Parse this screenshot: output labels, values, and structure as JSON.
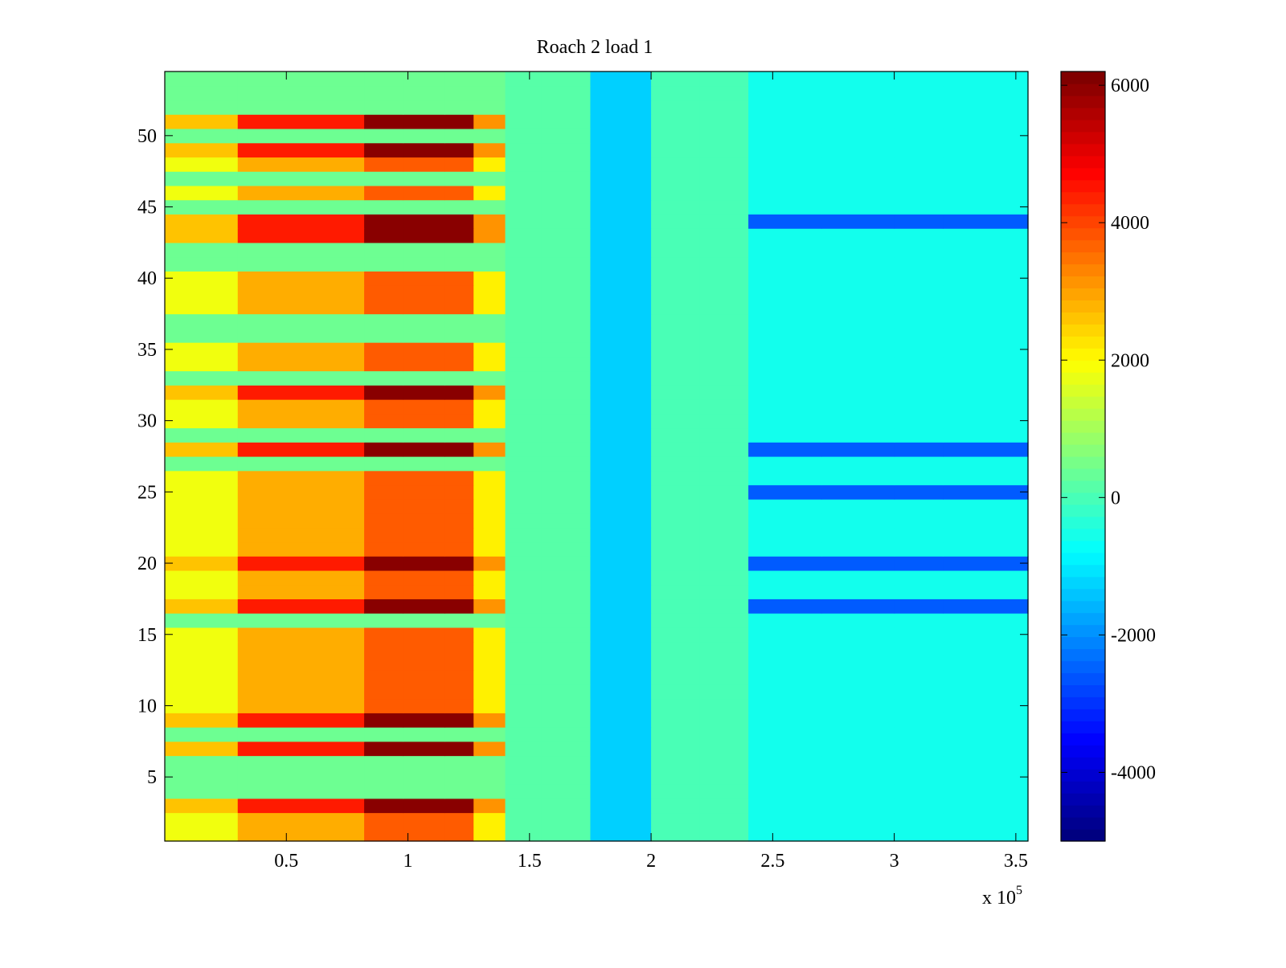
{
  "chart_data": {
    "type": "heatmap",
    "title": "Roach 2 load 1",
    "xlabel": "",
    "ylabel": "",
    "x_exponent_label": "x 10",
    "x_exponent_power": "5",
    "xlim": [
      0,
      3.55
    ],
    "ylim": [
      0.5,
      54.5
    ],
    "x_ticks": [
      {
        "value": 0.5,
        "label": "0.5"
      },
      {
        "value": 1,
        "label": "1"
      },
      {
        "value": 1.5,
        "label": "1.5"
      },
      {
        "value": 2,
        "label": "2"
      },
      {
        "value": 2.5,
        "label": "2.5"
      },
      {
        "value": 3,
        "label": "3"
      },
      {
        "value": 3.5,
        "label": "3.5"
      }
    ],
    "y_ticks": [
      {
        "value": 5,
        "label": "5"
      },
      {
        "value": 10,
        "label": "10"
      },
      {
        "value": 15,
        "label": "15"
      },
      {
        "value": 20,
        "label": "20"
      },
      {
        "value": 25,
        "label": "25"
      },
      {
        "value": 30,
        "label": "30"
      },
      {
        "value": 35,
        "label": "35"
      },
      {
        "value": 40,
        "label": "40"
      },
      {
        "value": 45,
        "label": "45"
      },
      {
        "value": 50,
        "label": "50"
      }
    ],
    "colorbar": {
      "colormap": "jet",
      "range": [
        -5000,
        6200
      ],
      "ticks": [
        {
          "value": 6000,
          "label": "6000"
        },
        {
          "value": 4000,
          "label": "4000"
        },
        {
          "value": 2000,
          "label": "2000"
        },
        {
          "value": 0,
          "label": "0"
        },
        {
          "value": -2000,
          "label": "-2000"
        },
        {
          "value": -4000,
          "label": "-4000"
        }
      ]
    },
    "rows": 54,
    "x_segments": [
      0,
      0.3,
      0.82,
      0.98,
      1.15,
      1.27,
      1.4,
      1.55,
      1.75,
      2.0,
      2.2,
      2.4,
      2.7,
      3.0,
      3.2,
      3.55
    ],
    "hot_rows": [
      3,
      7,
      9,
      17,
      20,
      28,
      32,
      43,
      44,
      49,
      51
    ],
    "warm_rows": [
      1,
      2,
      10,
      11,
      12,
      13,
      14,
      15,
      18,
      19,
      21,
      22,
      23,
      24,
      25,
      26,
      30,
      31,
      34,
      35,
      38,
      39,
      40,
      46,
      48
    ],
    "cool_rows": [
      4,
      5,
      6,
      8,
      16,
      27,
      29,
      33,
      36,
      37,
      41,
      42,
      45,
      47,
      50,
      52,
      53,
      54
    ],
    "value_model": {
      "hot_peak": 6100,
      "warm_peak": 3800,
      "cool_peak": 600,
      "baseline_left": 800,
      "baseline_right": -600,
      "dip_near_2": -1800,
      "deep_right_rows": [
        17,
        20,
        28,
        25,
        44
      ],
      "deep_right_value": -2600
    }
  }
}
